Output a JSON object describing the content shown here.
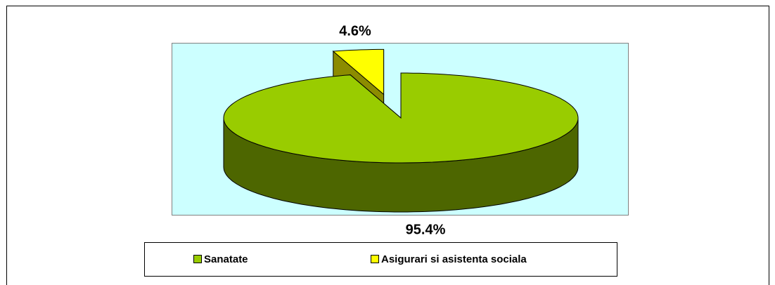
{
  "chart_data": {
    "type": "pie",
    "categories": [
      "Sanatate",
      "Asigurari si asistenta sociala"
    ],
    "values": [
      95.4,
      4.6
    ],
    "value_labels": [
      "95.4%",
      "4.6%"
    ],
    "colors": [
      "#99cc00",
      "#ffff00"
    ],
    "exploded": [
      false,
      true
    ],
    "legend": "bottom"
  }
}
